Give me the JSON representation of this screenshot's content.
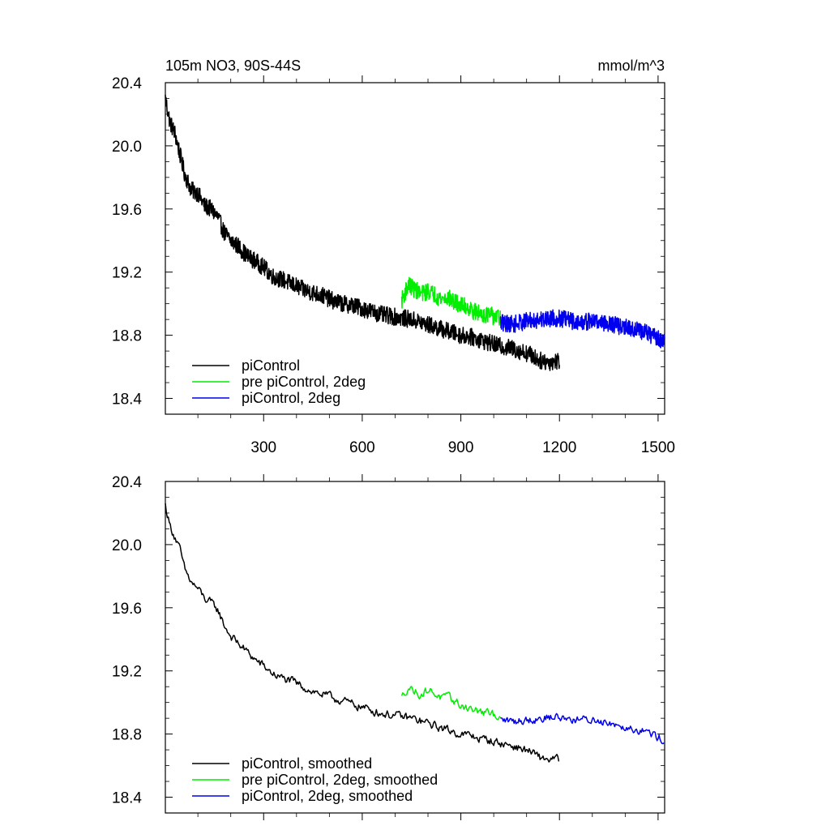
{
  "header": {
    "title": "105m NO3, 90S-44S",
    "units": "mmol/m^3"
  },
  "colors": {
    "piControl": "#000000",
    "pre_piControl_2deg": "#00ee00",
    "piControl_2deg": "#0000ee"
  },
  "chart_data": [
    {
      "type": "line",
      "title": "105m NO3, 90S-44S",
      "units_label": "mmol/m^3",
      "xlabel": "",
      "ylabel": "",
      "xlim": [
        1,
        1520
      ],
      "ylim": [
        18.3,
        20.4
      ],
      "x_tick_labels": [
        "300",
        "600",
        "900",
        "1200",
        "1500"
      ],
      "y_tick_labels": [
        "20.4",
        "20.0",
        "19.6",
        "19.2",
        "18.8",
        "18.4"
      ],
      "grid": false,
      "legend_position": "bottom-left",
      "series": [
        {
          "name": "piControl",
          "color": "#000000",
          "x_range": [
            1,
            1200
          ],
          "points": [
            [
              1,
              20.3
            ],
            [
              15,
              20.15
            ],
            [
              30,
              20.08
            ],
            [
              45,
              19.95
            ],
            [
              60,
              19.82
            ],
            [
              80,
              19.72
            ],
            [
              100,
              19.7
            ],
            [
              120,
              19.62
            ],
            [
              140,
              19.6
            ],
            [
              160,
              19.55
            ],
            [
              180,
              19.45
            ],
            [
              200,
              19.4
            ],
            [
              225,
              19.36
            ],
            [
              250,
              19.3
            ],
            [
              275,
              19.27
            ],
            [
              300,
              19.23
            ],
            [
              330,
              19.17
            ],
            [
              360,
              19.15
            ],
            [
              390,
              19.12
            ],
            [
              420,
              19.09
            ],
            [
              450,
              19.07
            ],
            [
              480,
              19.05
            ],
            [
              510,
              19.02
            ],
            [
              540,
              19.0
            ],
            [
              570,
              18.99
            ],
            [
              600,
              18.97
            ],
            [
              630,
              18.95
            ],
            [
              660,
              18.93
            ],
            [
              690,
              18.92
            ],
            [
              720,
              18.91
            ],
            [
              750,
              18.9
            ],
            [
              780,
              18.88
            ],
            [
              810,
              18.86
            ],
            [
              840,
              18.84
            ],
            [
              870,
              18.82
            ],
            [
              900,
              18.8
            ],
            [
              930,
              18.79
            ],
            [
              960,
              18.77
            ],
            [
              990,
              18.75
            ],
            [
              1020,
              18.73
            ],
            [
              1050,
              18.72
            ],
            [
              1080,
              18.7
            ],
            [
              1110,
              18.68
            ],
            [
              1140,
              18.64
            ],
            [
              1170,
              18.63
            ],
            [
              1200,
              18.64
            ]
          ]
        },
        {
          "name": "pre piControl, 2deg",
          "color": "#00ee00",
          "x_range": [
            720,
            1020
          ],
          "points": [
            [
              720,
              19.02
            ],
            [
              740,
              19.12
            ],
            [
              760,
              19.09
            ],
            [
              780,
              19.06
            ],
            [
              800,
              19.08
            ],
            [
              820,
              19.06
            ],
            [
              840,
              19.03
            ],
            [
              860,
              19.04
            ],
            [
              880,
              19.01
            ],
            [
              900,
              18.99
            ],
            [
              920,
              18.98
            ],
            [
              940,
              18.95
            ],
            [
              960,
              18.94
            ],
            [
              980,
              18.93
            ],
            [
              1000,
              18.92
            ],
            [
              1020,
              18.91
            ]
          ]
        },
        {
          "name": "piControl, 2deg",
          "color": "#0000ee",
          "x_range": [
            1020,
            1520
          ],
          "points": [
            [
              1020,
              18.88
            ],
            [
              1060,
              18.87
            ],
            [
              1100,
              18.89
            ],
            [
              1140,
              18.9
            ],
            [
              1180,
              18.91
            ],
            [
              1220,
              18.9
            ],
            [
              1260,
              18.88
            ],
            [
              1300,
              18.89
            ],
            [
              1340,
              18.88
            ],
            [
              1380,
              18.86
            ],
            [
              1420,
              18.84
            ],
            [
              1460,
              18.82
            ],
            [
              1490,
              18.79
            ],
            [
              1520,
              18.76
            ]
          ]
        }
      ]
    },
    {
      "type": "line",
      "title": "",
      "xlabel": "",
      "ylabel": "",
      "xlim": [
        1,
        1520
      ],
      "ylim": [
        18.3,
        20.4
      ],
      "y_tick_labels": [
        "20.4",
        "20.0",
        "19.6",
        "19.2",
        "18.8",
        "18.4"
      ],
      "grid": false,
      "legend_position": "bottom-left",
      "series": [
        {
          "name": "piControl, smoothed",
          "color": "#000000",
          "x_range": [
            1,
            1200
          ],
          "points": [
            [
              1,
              20.25
            ],
            [
              15,
              20.12
            ],
            [
              30,
              20.05
            ],
            [
              45,
              19.97
            ],
            [
              60,
              19.84
            ],
            [
              80,
              19.76
            ],
            [
              100,
              19.72
            ],
            [
              120,
              19.66
            ],
            [
              140,
              19.63
            ],
            [
              160,
              19.59
            ],
            [
              180,
              19.49
            ],
            [
              200,
              19.42
            ],
            [
              225,
              19.37
            ],
            [
              250,
              19.32
            ],
            [
              275,
              19.27
            ],
            [
              300,
              19.23
            ],
            [
              330,
              19.18
            ],
            [
              360,
              19.15
            ],
            [
              390,
              19.13
            ],
            [
              420,
              19.1
            ],
            [
              450,
              19.07
            ],
            [
              480,
              19.05
            ],
            [
              510,
              19.03
            ],
            [
              540,
              19.01
            ],
            [
              570,
              18.99
            ],
            [
              600,
              18.97
            ],
            [
              630,
              18.95
            ],
            [
              660,
              18.93
            ],
            [
              690,
              18.92
            ],
            [
              720,
              18.91
            ],
            [
              750,
              18.9
            ],
            [
              780,
              18.88
            ],
            [
              810,
              18.86
            ],
            [
              840,
              18.84
            ],
            [
              870,
              18.82
            ],
            [
              900,
              18.8
            ],
            [
              930,
              18.79
            ],
            [
              960,
              18.77
            ],
            [
              990,
              18.76
            ],
            [
              1020,
              18.74
            ],
            [
              1050,
              18.73
            ],
            [
              1080,
              18.71
            ],
            [
              1110,
              18.69
            ],
            [
              1140,
              18.65
            ],
            [
              1170,
              18.64
            ],
            [
              1200,
              18.64
            ]
          ]
        },
        {
          "name": "pre piControl, 2deg, smoothed",
          "color": "#00ee00",
          "x_range": [
            720,
            1020
          ],
          "points": [
            [
              720,
              19.03
            ],
            [
              740,
              19.1
            ],
            [
              760,
              19.07
            ],
            [
              780,
              19.05
            ],
            [
              800,
              19.08
            ],
            [
              820,
              19.06
            ],
            [
              840,
              19.03
            ],
            [
              860,
              19.03
            ],
            [
              880,
              19.01
            ],
            [
              900,
              18.98
            ],
            [
              920,
              18.97
            ],
            [
              940,
              18.95
            ],
            [
              960,
              18.94
            ],
            [
              980,
              18.93
            ],
            [
              1000,
              18.92
            ],
            [
              1020,
              18.92
            ]
          ]
        },
        {
          "name": "piControl, 2deg, smoothed",
          "color": "#0000ee",
          "x_range": [
            1020,
            1520
          ],
          "points": [
            [
              1020,
              18.89
            ],
            [
              1060,
              18.88
            ],
            [
              1100,
              18.89
            ],
            [
              1140,
              18.9
            ],
            [
              1180,
              18.91
            ],
            [
              1220,
              18.9
            ],
            [
              1260,
              18.89
            ],
            [
              1300,
              18.89
            ],
            [
              1340,
              18.88
            ],
            [
              1380,
              18.86
            ],
            [
              1420,
              18.84
            ],
            [
              1460,
              18.82
            ],
            [
              1490,
              18.79
            ],
            [
              1520,
              18.76
            ]
          ]
        }
      ]
    }
  ]
}
